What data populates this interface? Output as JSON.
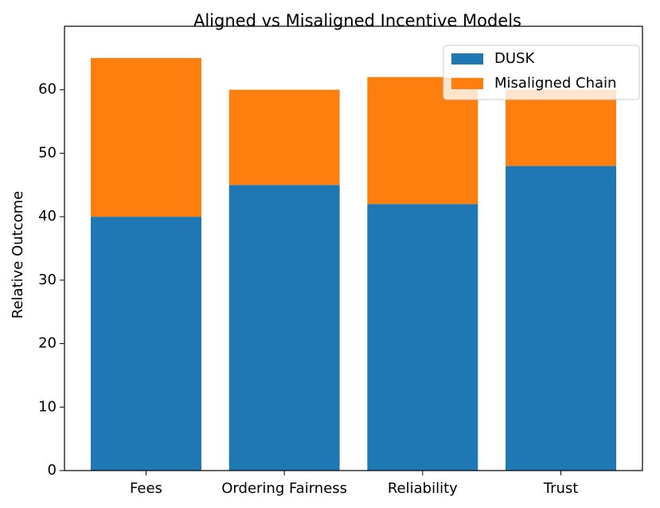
{
  "chart_data": {
    "type": "stacked_bar",
    "title": "Aligned vs Misaligned Incentive Models",
    "ylabel": "Relative Outcome",
    "categories": [
      "Fees",
      "Ordering Fairness",
      "Reliability",
      "Trust"
    ],
    "series": [
      {
        "name": "DUSK",
        "color": "#1f77b4",
        "values": [
          40,
          45,
          42,
          48
        ]
      },
      {
        "name": "Misaligned Chain",
        "color": "#ff7f0e",
        "values": [
          25,
          15,
          20,
          12
        ]
      }
    ],
    "ylim": [
      0,
      70
    ],
    "yticks": [
      0,
      10,
      20,
      30,
      40,
      50,
      60
    ],
    "legend": "upper right"
  }
}
